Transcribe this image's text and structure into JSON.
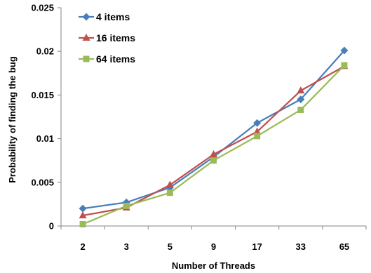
{
  "chart_data": {
    "type": "line",
    "title": "",
    "xlabel": "Number of Threads",
    "ylabel": "Probability of finding the bug",
    "categories": [
      "2",
      "3",
      "5",
      "9",
      "17",
      "33",
      "65"
    ],
    "ylim": [
      0,
      0.025
    ],
    "yticks": [
      "0",
      "0.005",
      "0.01",
      "0.015",
      "0.02",
      "0.025"
    ],
    "grid": false,
    "legend": "top-left",
    "series": [
      {
        "name": "4 items",
        "color": "#4a7ebb",
        "marker": "diamond",
        "values": [
          0.002,
          0.0027,
          0.0044,
          0.0079,
          0.0118,
          0.0145,
          0.0201
        ]
      },
      {
        "name": "16 items",
        "color": "#c0504d",
        "marker": "triangle",
        "values": [
          0.0012,
          0.0021,
          0.0047,
          0.0082,
          0.0108,
          0.0155,
          0.0183
        ]
      },
      {
        "name": "64 items",
        "color": "#9bbb59",
        "marker": "square",
        "values": [
          0.0002,
          0.0023,
          0.0038,
          0.0075,
          0.0103,
          0.0133,
          0.0184
        ]
      }
    ]
  }
}
